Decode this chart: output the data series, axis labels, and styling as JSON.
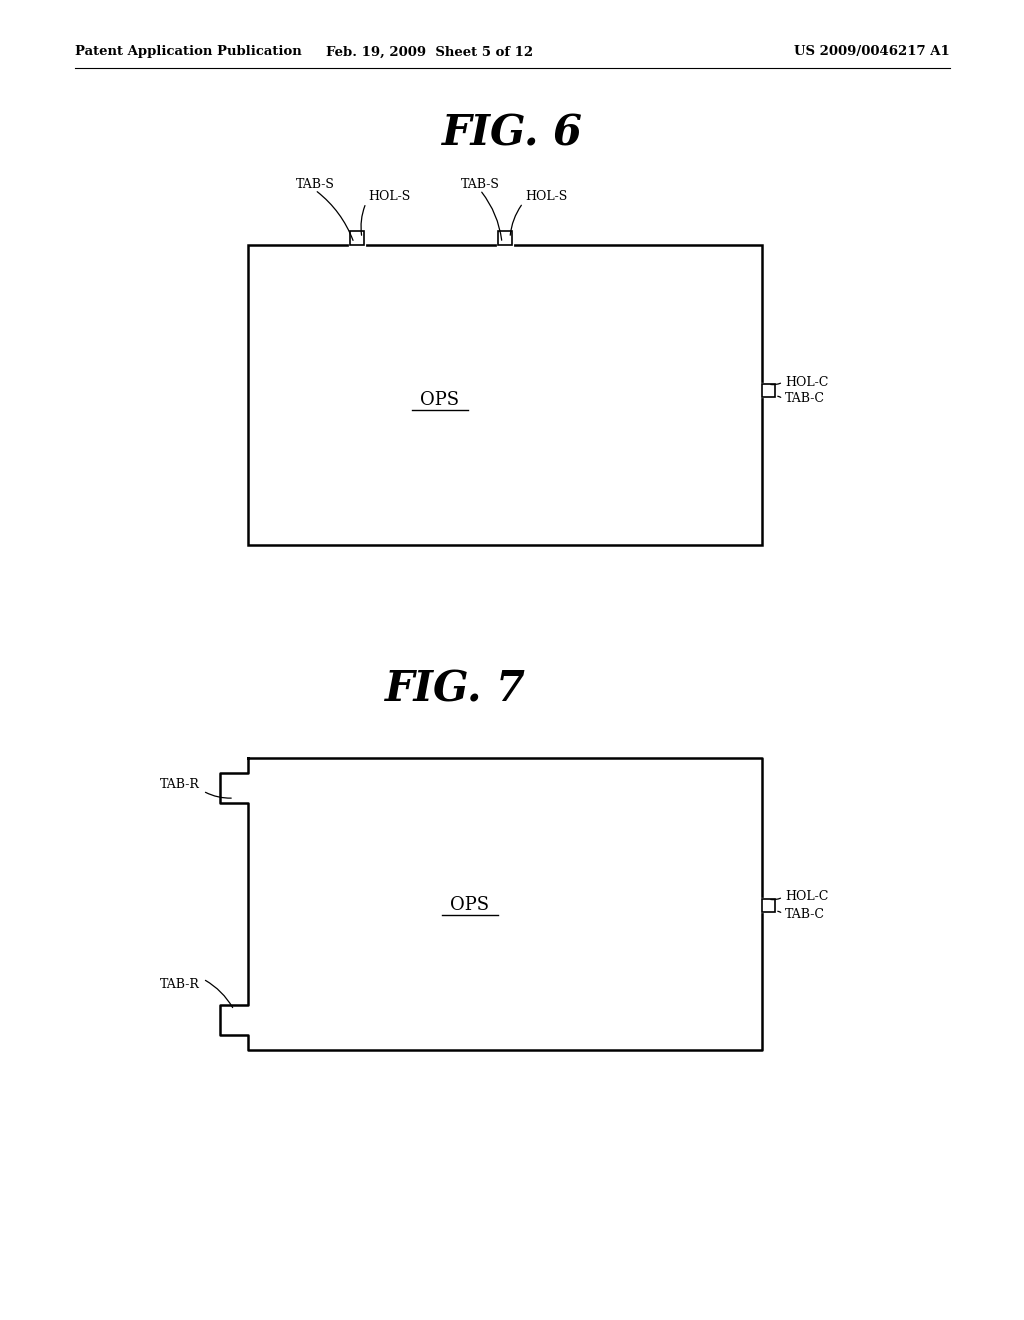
{
  "bg_color": "#ffffff",
  "header_left": "Patent Application Publication",
  "header_mid": "Feb. 19, 2009  Sheet 5 of 12",
  "header_right": "US 2009/0046217 A1",
  "fig6_title": "FIG. 6",
  "fig7_title": "FIG. 7"
}
